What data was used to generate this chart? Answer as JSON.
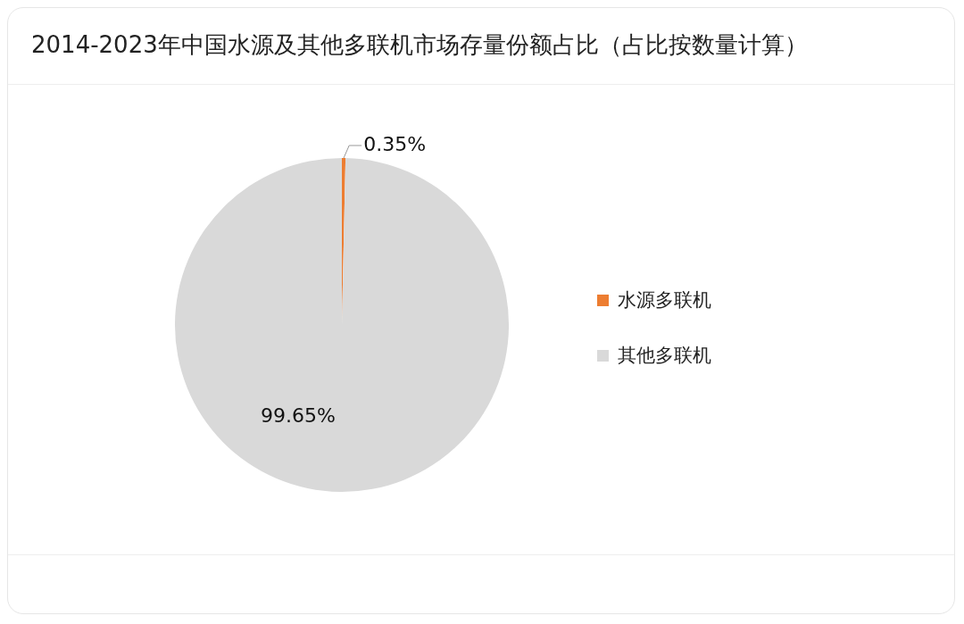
{
  "chart_data": {
    "type": "pie",
    "title": "2014-2023年中国水源及其他多联机市场存量份额占比（占比按数量计算）",
    "categories": [
      "水源多联机",
      "其他多联机"
    ],
    "values": [
      0.35,
      99.65
    ],
    "colors": [
      "#ed7d31",
      "#d9d9d9"
    ],
    "value_labels": [
      "0.35%",
      "99.65%"
    ],
    "legend": "right"
  }
}
